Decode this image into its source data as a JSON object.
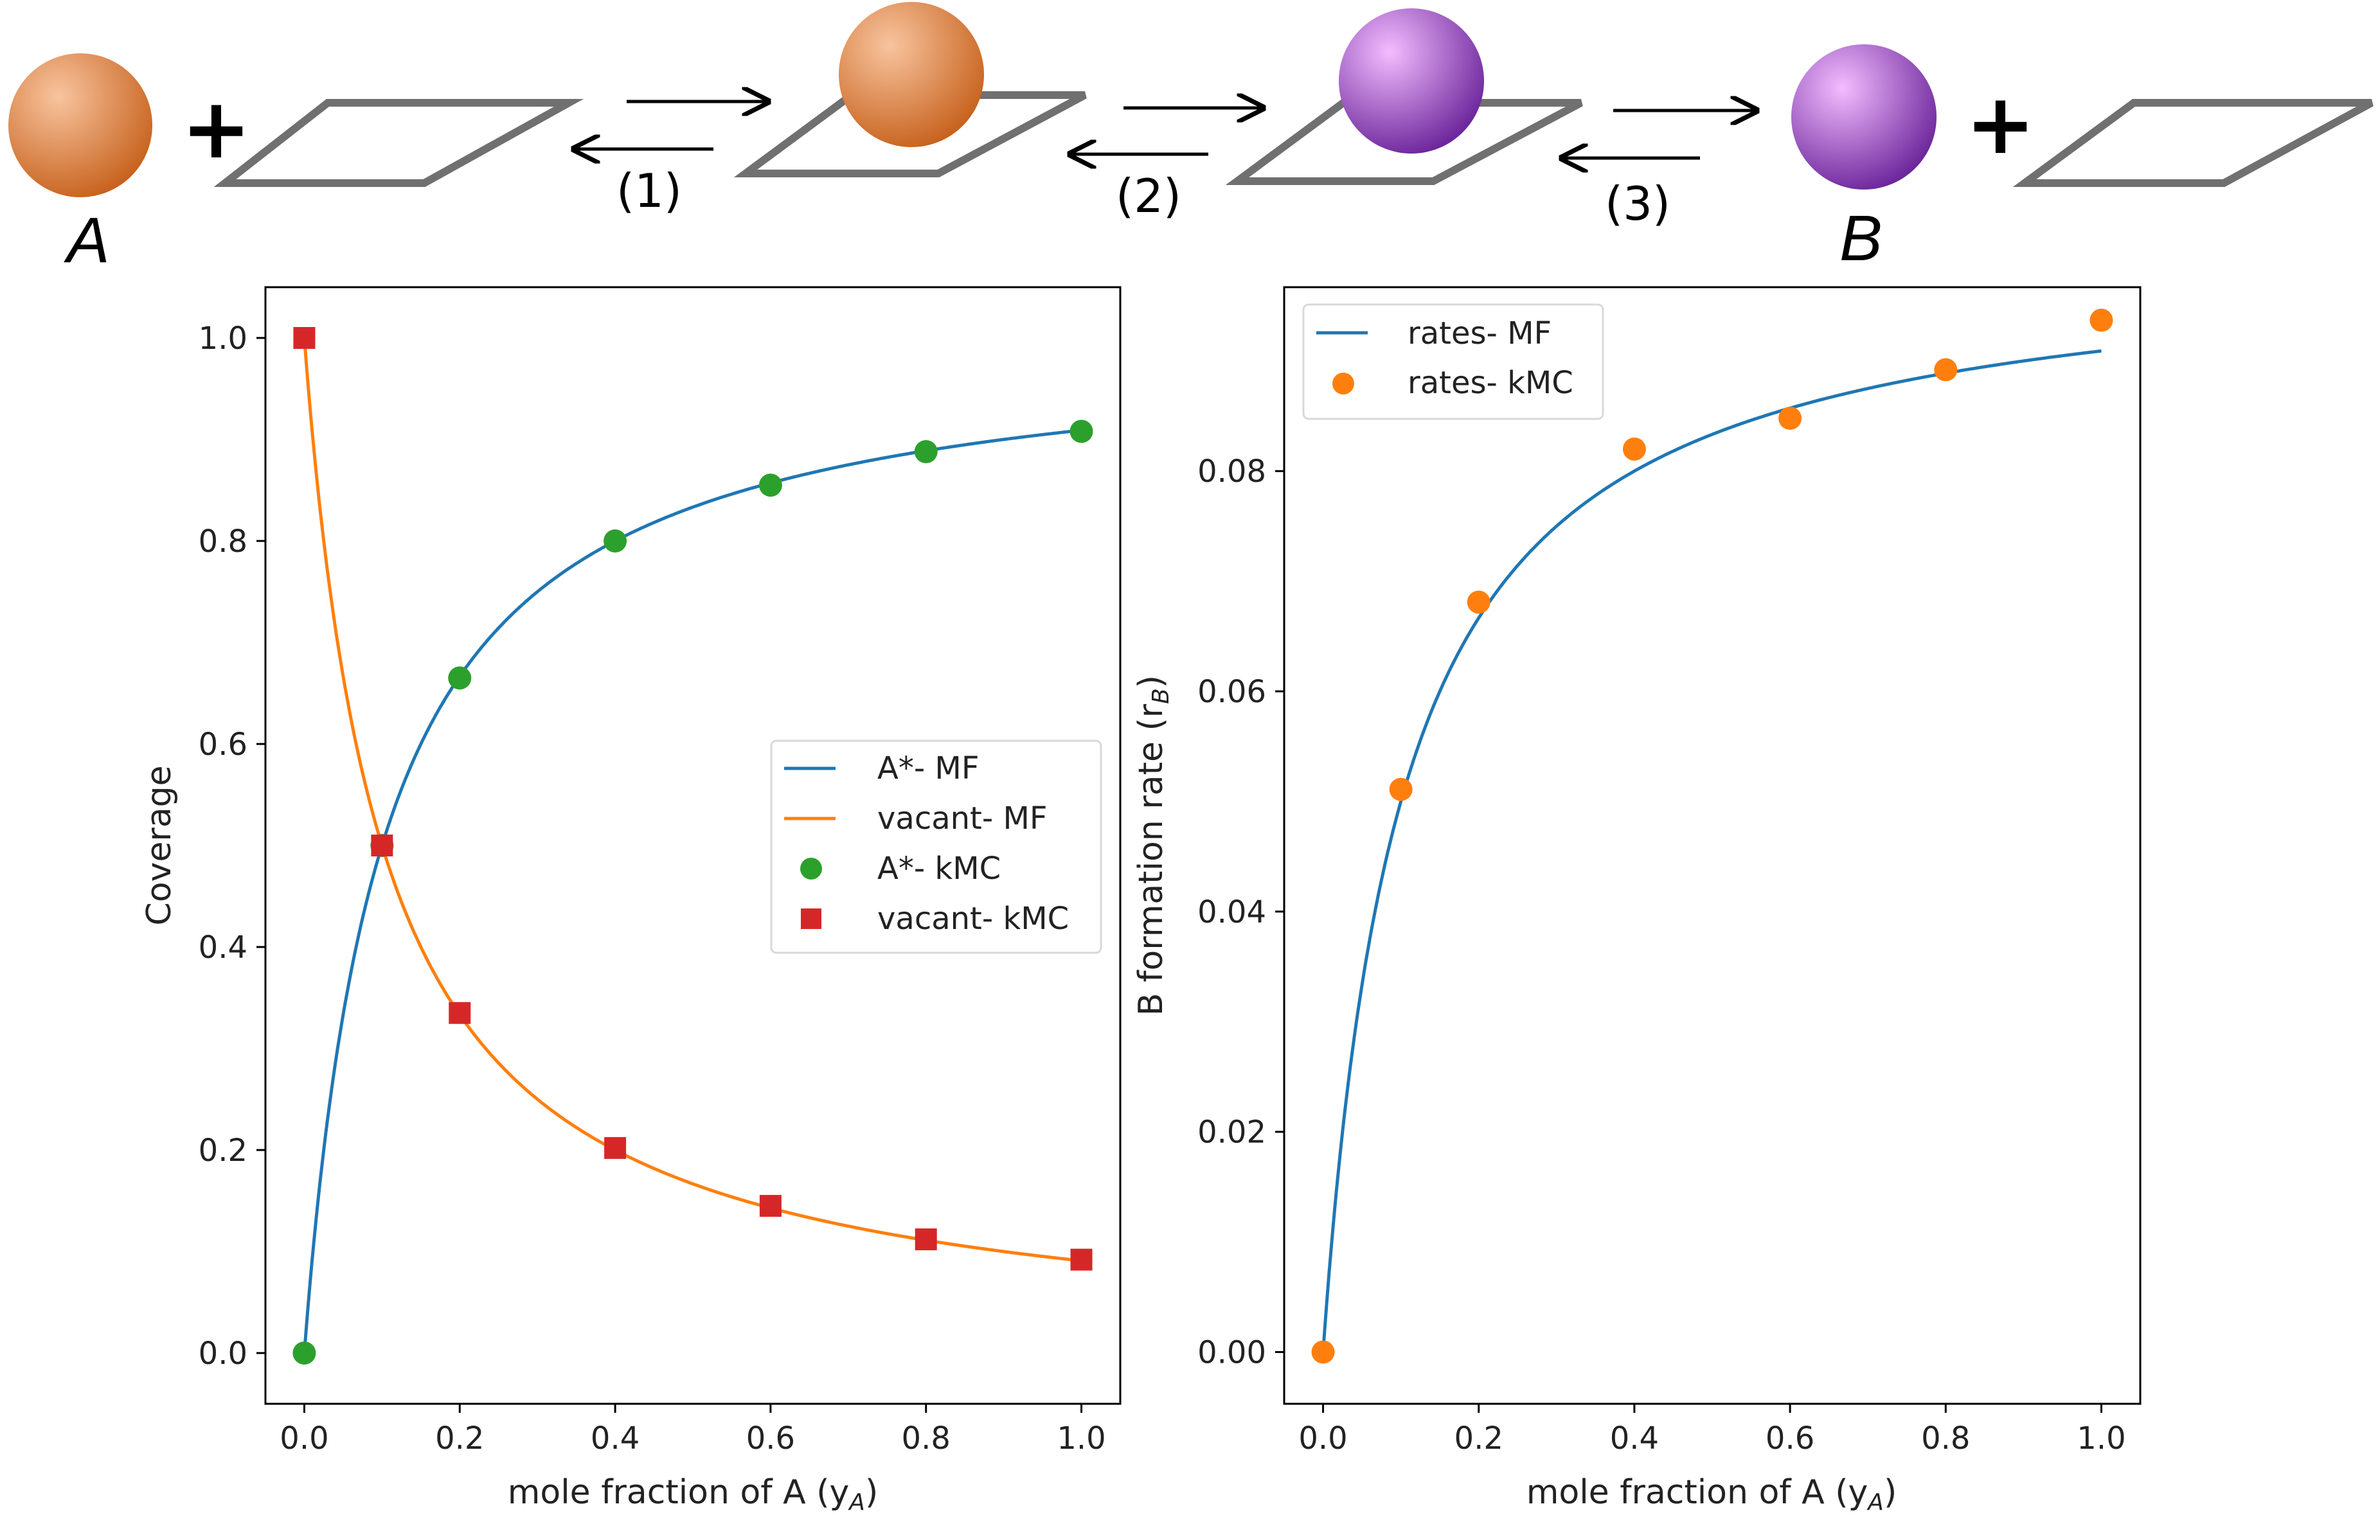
{
  "scheme": {
    "species_a": "A",
    "species_b": "B",
    "plus_sign": "+",
    "steps": [
      "(1)",
      "(2)",
      "(3)"
    ],
    "colors": {
      "species_a_light": "#f8c49e",
      "species_a_dark": "#c7611c",
      "species_b_light": "#f3bcff",
      "species_b_dark": "#6a249a",
      "surface_edge": "#707070"
    }
  },
  "chart_data": [
    {
      "type": "line",
      "title": "",
      "xlabel": "mole fraction of A (y",
      "xlabel_sub": "A",
      "xlabel_close": ")",
      "ylabel": "Coverage",
      "xlim": [
        -0.05,
        1.05
      ],
      "ylim": [
        -0.05,
        1.05
      ],
      "xticks": [
        "0.0",
        "0.2",
        "0.4",
        "0.6",
        "0.8",
        "1.0"
      ],
      "xtick_values": [
        0.0,
        0.2,
        0.4,
        0.6,
        0.8,
        1.0
      ],
      "yticks": [
        "0.0",
        "0.2",
        "0.4",
        "0.6",
        "0.8",
        "1.0"
      ],
      "ytick_values": [
        0.0,
        0.2,
        0.4,
        0.6,
        0.8,
        1.0
      ],
      "grid": false,
      "legend_position": "center-right",
      "series": [
        {
          "name": "A*- MF",
          "kind": "line",
          "color": "#1f77b4",
          "curve": "theta_a",
          "K": 10
        },
        {
          "name": "vacant- MF",
          "kind": "line",
          "color": "#ff7f0e",
          "curve": "theta_v",
          "K": 10
        },
        {
          "name": "A*- kMC",
          "kind": "scatter",
          "marker": "circle",
          "color": "#2ca02c",
          "x": [
            0.0,
            0.1,
            0.2,
            0.4,
            0.6,
            0.8,
            1.0
          ],
          "y": [
            0.0,
            0.5,
            0.665,
            0.8,
            0.855,
            0.888,
            0.908
          ]
        },
        {
          "name": "vacant- kMC",
          "kind": "scatter",
          "marker": "square",
          "color": "#d62728",
          "x": [
            0.0,
            0.1,
            0.2,
            0.4,
            0.6,
            0.8,
            1.0
          ],
          "y": [
            1.0,
            0.5,
            0.335,
            0.202,
            0.145,
            0.112,
            0.092
          ]
        }
      ]
    },
    {
      "type": "line",
      "title": "",
      "xlabel": "mole fraction of A (y",
      "xlabel_sub": "A",
      "xlabel_close": ")",
      "ylabel": "B formation rate (r",
      "ylabel_sub": "B",
      "ylabel_close": ")",
      "xlim": [
        -0.05,
        1.05
      ],
      "ylim": [
        -0.0047,
        0.0967
      ],
      "xticks": [
        "0.0",
        "0.2",
        "0.4",
        "0.6",
        "0.8",
        "1.0"
      ],
      "xtick_values": [
        0.0,
        0.2,
        0.4,
        0.6,
        0.8,
        1.0
      ],
      "yticks": [
        "0.00",
        "0.02",
        "0.04",
        "0.06",
        "0.08"
      ],
      "ytick_values": [
        0.0,
        0.02,
        0.04,
        0.06,
        0.08
      ],
      "grid": false,
      "legend_position": "top-left",
      "series": [
        {
          "name": "rates- MF",
          "kind": "line",
          "color": "#1f77b4",
          "curve": "rate",
          "K": 10,
          "k": 0.1
        },
        {
          "name": "rates- kMC",
          "kind": "scatter",
          "marker": "circle",
          "color": "#ff7f0e",
          "x": [
            0.0,
            0.1,
            0.2,
            0.4,
            0.6,
            0.8,
            1.0
          ],
          "y": [
            0.0,
            0.0511,
            0.0681,
            0.082,
            0.0848,
            0.0892,
            0.0937
          ]
        }
      ]
    }
  ]
}
